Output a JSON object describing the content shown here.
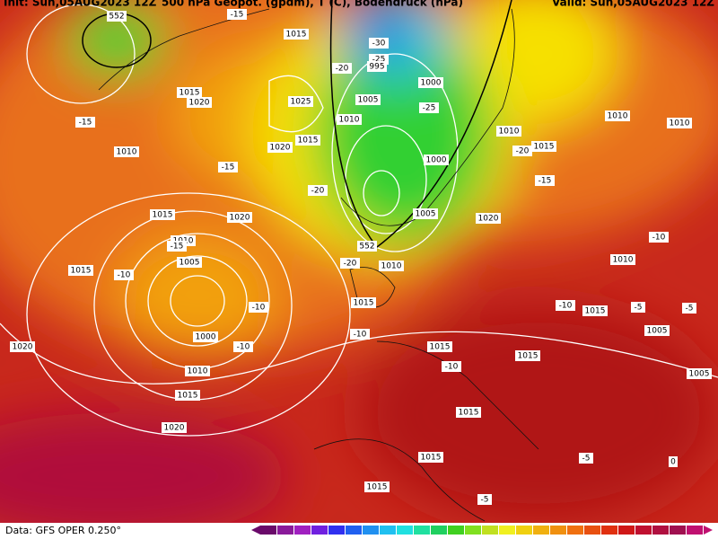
{
  "header": {
    "init": "Init: Sun,05AUG2023 12Z",
    "title": "500 hPa Geopot. (gpdm), T (C), Bodendruck (hPa)",
    "valid": "Valid: Sun,05AUG2023 12Z"
  },
  "contour_labels": [
    "552",
    "1015",
    "-30",
    "-25",
    "995",
    "-15",
    "-20",
    "1015",
    "1020",
    "-15",
    "1025",
    "1010",
    "1005",
    "1000",
    "-25",
    "1015",
    "1020",
    "1010",
    "1010",
    "1010",
    "1015",
    "-20",
    "1010",
    "-15",
    "1000",
    "-15",
    "-20",
    "1005",
    "1015",
    "1020",
    "1020",
    "1010",
    "-15",
    "-10",
    "552",
    "1005",
    "-20",
    "1010",
    "1010",
    "1015",
    "-10",
    "1015",
    "-10",
    "-10",
    "1015",
    "-5",
    "-5",
    "1000",
    "-10",
    "1005",
    "-10",
    "1015",
    "1020",
    "1015",
    "-10",
    "1010",
    "1005",
    "1015",
    "1015",
    "1020",
    "1015",
    "-5",
    "0",
    "1015",
    "-5"
  ],
  "footer": {
    "source": "Data: GFS OPER 0.250°"
  }
}
